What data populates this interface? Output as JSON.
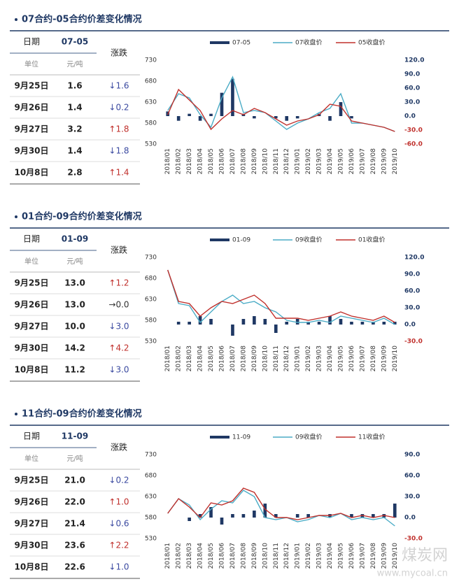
{
  "panels": [
    {
      "title": "07合约-05合约价差变化情况",
      "table": {
        "header": [
          "日期",
          "07-05",
          "涨跌"
        ],
        "units": [
          "单位",
          "元/吨"
        ],
        "rows": [
          [
            "9月25日",
            "1.6",
            "↓1.6"
          ],
          [
            "9月26日",
            "1.4",
            "↓0.2"
          ],
          [
            "9月27日",
            "3.2",
            "↑1.8"
          ],
          [
            "9月30日",
            "1.4",
            "↓1.8"
          ],
          [
            "10月8日",
            "2.8",
            "↑1.4"
          ]
        ]
      }
    },
    {
      "title": "01合约-09合约价差变化情况",
      "table": {
        "header": [
          "日期",
          "01-09",
          "涨跌"
        ],
        "units": [
          "单位",
          "元/吨"
        ],
        "rows": [
          [
            "9月25日",
            "13.0",
            "↑1.2"
          ],
          [
            "9月26日",
            "13.0",
            "→0.0"
          ],
          [
            "9月27日",
            "10.0",
            "↓3.0"
          ],
          [
            "9月30日",
            "14.2",
            "↑4.2"
          ],
          [
            "10月8日",
            "11.2",
            "↓3.0"
          ]
        ]
      }
    },
    {
      "title": "11合约-09合约价差变化情况",
      "table": {
        "header": [
          "日期",
          "11-09",
          "涨跌"
        ],
        "units": [
          "单位",
          "元/吨"
        ],
        "rows": [
          [
            "9月25日",
            "21.0",
            "↓0.2"
          ],
          [
            "9月26日",
            "22.0",
            "↑1.0"
          ],
          [
            "9月27日",
            "21.4",
            "↓0.6"
          ],
          [
            "9月30日",
            "23.6",
            "↑2.2"
          ],
          [
            "10月8日",
            "22.6",
            "↓1.0"
          ]
        ]
      }
    }
  ],
  "watermark": [
    "煤炭网",
    "www.mycoal.cn"
  ],
  "chart_data": [
    {
      "type": "bar-line",
      "categories": [
        "2018/01",
        "2018/02",
        "2018/03",
        "2018/04",
        "2018/05",
        "2018/06",
        "2018/07",
        "2018/08",
        "2018/09",
        "2018/10",
        "2018/11",
        "2018/12",
        "2019/01",
        "2019/02",
        "2019/03",
        "2019/04",
        "2019/05",
        "2019/06",
        "2019/07",
        "2019/08",
        "2019/09",
        "2019/10"
      ],
      "ylim": [
        530,
        730
      ],
      "yticks": [
        530,
        580,
        630,
        680,
        730
      ],
      "y2lim": [
        -60,
        120
      ],
      "y2ticks": [
        {
          "value": -60,
          "label": "-60.0"
        },
        {
          "value": -30,
          "label": "-30.0"
        },
        {
          "value": 0,
          "label": "0.0"
        },
        {
          "value": 30,
          "label": "30.0"
        },
        {
          "value": 60,
          "label": "60.0"
        },
        {
          "value": 90,
          "label": "90.0"
        },
        {
          "value": 120,
          "label": "120.0"
        }
      ],
      "series": [
        {
          "name": "07-05",
          "type": "bar",
          "axis": "y2",
          "color": "#1f3864",
          "values": [
            10,
            -10,
            5,
            -10,
            5,
            50,
            80,
            5,
            -5,
            0,
            -5,
            -10,
            -5,
            0,
            5,
            -10,
            30,
            -5,
            0,
            0,
            0,
            0
          ]
        },
        {
          "name": "07收盘价",
          "type": "line",
          "color": "#4bacc6",
          "values": [
            610,
            650,
            640,
            600,
            570,
            640,
            690,
            605,
            610,
            605,
            585,
            565,
            580,
            590,
            605,
            615,
            650,
            580,
            580,
            575,
            570,
            560
          ]
        },
        {
          "name": "05收盘价",
          "type": "line",
          "color": "#c0302c",
          "values": [
            600,
            660,
            635,
            610,
            565,
            590,
            610,
            600,
            615,
            605,
            590,
            575,
            585,
            590,
            600,
            625,
            620,
            585,
            580,
            575,
            570,
            560
          ]
        }
      ]
    },
    {
      "type": "bar-line",
      "categories": [
        "2018/01",
        "2018/02",
        "2018/03",
        "2018/04",
        "2018/05",
        "2018/06",
        "2018/07",
        "2018/08",
        "2018/09",
        "2018/10",
        "2018/11",
        "2018/12",
        "2019/01",
        "2019/02",
        "2019/03",
        "2019/04",
        "2019/05",
        "2019/06",
        "2019/07",
        "2019/08",
        "2019/09",
        "2019/10"
      ],
      "ylim": [
        530,
        730
      ],
      "yticks": [
        530,
        580,
        630,
        680,
        730
      ],
      "y2lim": [
        -30,
        120
      ],
      "y2ticks": [
        {
          "value": -30,
          "label": "-30.0"
        },
        {
          "value": 0,
          "label": "0.0"
        },
        {
          "value": 30,
          "label": "30.0"
        },
        {
          "value": 60,
          "label": "60.0"
        },
        {
          "value": 90,
          "label": "90.0"
        },
        {
          "value": 120,
          "label": "120.0"
        }
      ],
      "series": [
        {
          "name": "01-09",
          "type": "bar",
          "axis": "y2",
          "color": "#1f3864",
          "values": [
            0,
            5,
            5,
            15,
            10,
            0,
            -20,
            10,
            15,
            10,
            -15,
            5,
            10,
            5,
            5,
            15,
            10,
            5,
            5,
            5,
            5,
            5
          ]
        },
        {
          "name": "09收盘价",
          "type": "line",
          "color": "#4bacc6",
          "values": [
            700,
            620,
            615,
            575,
            600,
            625,
            640,
            620,
            625,
            610,
            600,
            580,
            575,
            575,
            580,
            575,
            590,
            585,
            580,
            575,
            585,
            570
          ]
        },
        {
          "name": "01收盘价",
          "type": "line",
          "color": "#c0302c",
          "values": [
            700,
            625,
            620,
            590,
            610,
            625,
            620,
            630,
            640,
            620,
            585,
            585,
            585,
            580,
            585,
            590,
            600,
            590,
            585,
            580,
            590,
            575
          ]
        }
      ]
    },
    {
      "type": "bar-line",
      "categories": [
        "2018/01",
        "2018/02",
        "2018/03",
        "2018/04",
        "2018/05",
        "2018/06",
        "2018/07",
        "2018/08",
        "2018/09",
        "2018/10",
        "2018/11",
        "2018/12",
        "2019/01",
        "2019/02",
        "2019/03",
        "2019/04",
        "2019/05",
        "2019/06",
        "2019/07",
        "2019/08",
        "2019/09",
        "2019/10"
      ],
      "ylim": [
        530,
        730
      ],
      "yticks": [
        530,
        580,
        630,
        680,
        730
      ],
      "y2lim": [
        -30,
        90
      ],
      "y2ticks": [
        {
          "value": -30,
          "label": "-30.0"
        },
        {
          "value": 0,
          "label": "0.0"
        },
        {
          "value": 30,
          "label": "30.0"
        },
        {
          "value": 60,
          "label": "60.0"
        },
        {
          "value": 90,
          "label": "90.0"
        }
      ],
      "series": [
        {
          "name": "11-09",
          "type": "bar",
          "axis": "y2",
          "color": "#1f3864",
          "values": [
            0,
            0,
            -5,
            5,
            15,
            -10,
            5,
            5,
            10,
            20,
            5,
            0,
            5,
            5,
            0,
            5,
            0,
            5,
            5,
            5,
            5,
            20
          ]
        },
        {
          "name": "09收盘价",
          "type": "line",
          "color": "#4bacc6",
          "values": [
            590,
            625,
            610,
            575,
            600,
            620,
            615,
            645,
            630,
            580,
            575,
            580,
            570,
            575,
            585,
            580,
            590,
            575,
            580,
            575,
            580,
            560
          ]
        },
        {
          "name": "11收盘价",
          "type": "line",
          "color": "#c0302c",
          "values": [
            590,
            625,
            605,
            580,
            615,
            610,
            620,
            650,
            640,
            600,
            580,
            580,
            575,
            580,
            585,
            585,
            590,
            580,
            585,
            580,
            585,
            580
          ]
        }
      ]
    }
  ]
}
